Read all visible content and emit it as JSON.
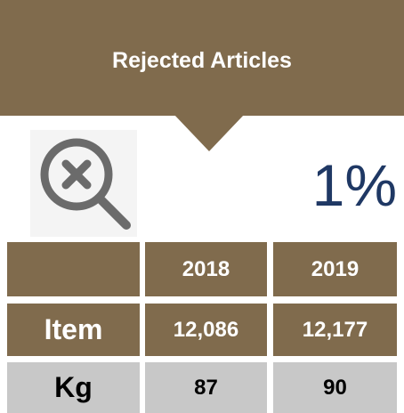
{
  "title": "Rejected Articles",
  "headline": "1%",
  "table": {
    "columns": [
      "2018",
      "2019"
    ],
    "rows": [
      [
        "Item",
        "12,086",
        "12,177"
      ],
      [
        "Kg",
        "87",
        "90"
      ]
    ]
  }
}
